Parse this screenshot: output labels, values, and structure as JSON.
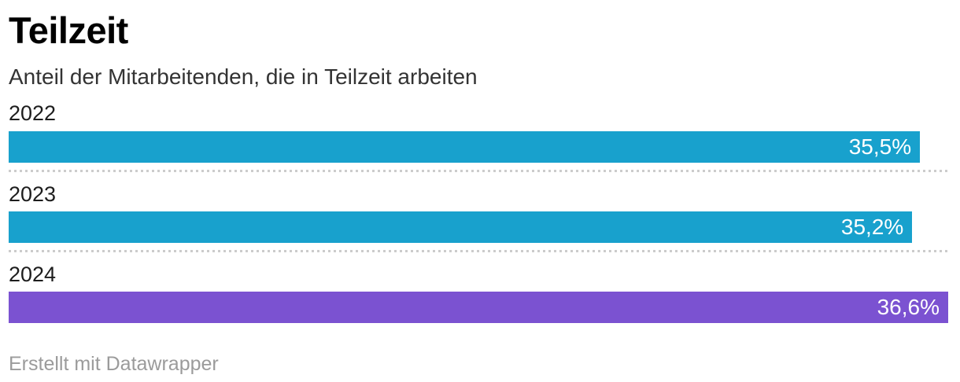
{
  "header": {
    "title": "Teilzeit",
    "subtitle": "Anteil der Mitarbeitenden, die in Teilzeit arbeiten"
  },
  "chart_data": {
    "type": "bar",
    "orientation": "horizontal",
    "title": "Teilzeit",
    "subtitle": "Anteil der Mitarbeitenden, die in Teilzeit arbeiten",
    "categories": [
      "2022",
      "2023",
      "2024"
    ],
    "values": [
      35.5,
      35.2,
      36.6
    ],
    "value_labels": [
      "35,5%",
      "35,2%",
      "36,6%"
    ],
    "bar_colors": [
      "#18a1cd",
      "#18a1cd",
      "#7b52d1"
    ],
    "xlim": [
      0,
      36.6
    ],
    "grid": false,
    "legend": "none",
    "value_label_position": "inside-end",
    "value_label_color": "#ffffff",
    "separator_style": "dotted",
    "separator_color": "#cccccc"
  },
  "footer": {
    "attribution": "Erstellt mit Datawrapper"
  }
}
